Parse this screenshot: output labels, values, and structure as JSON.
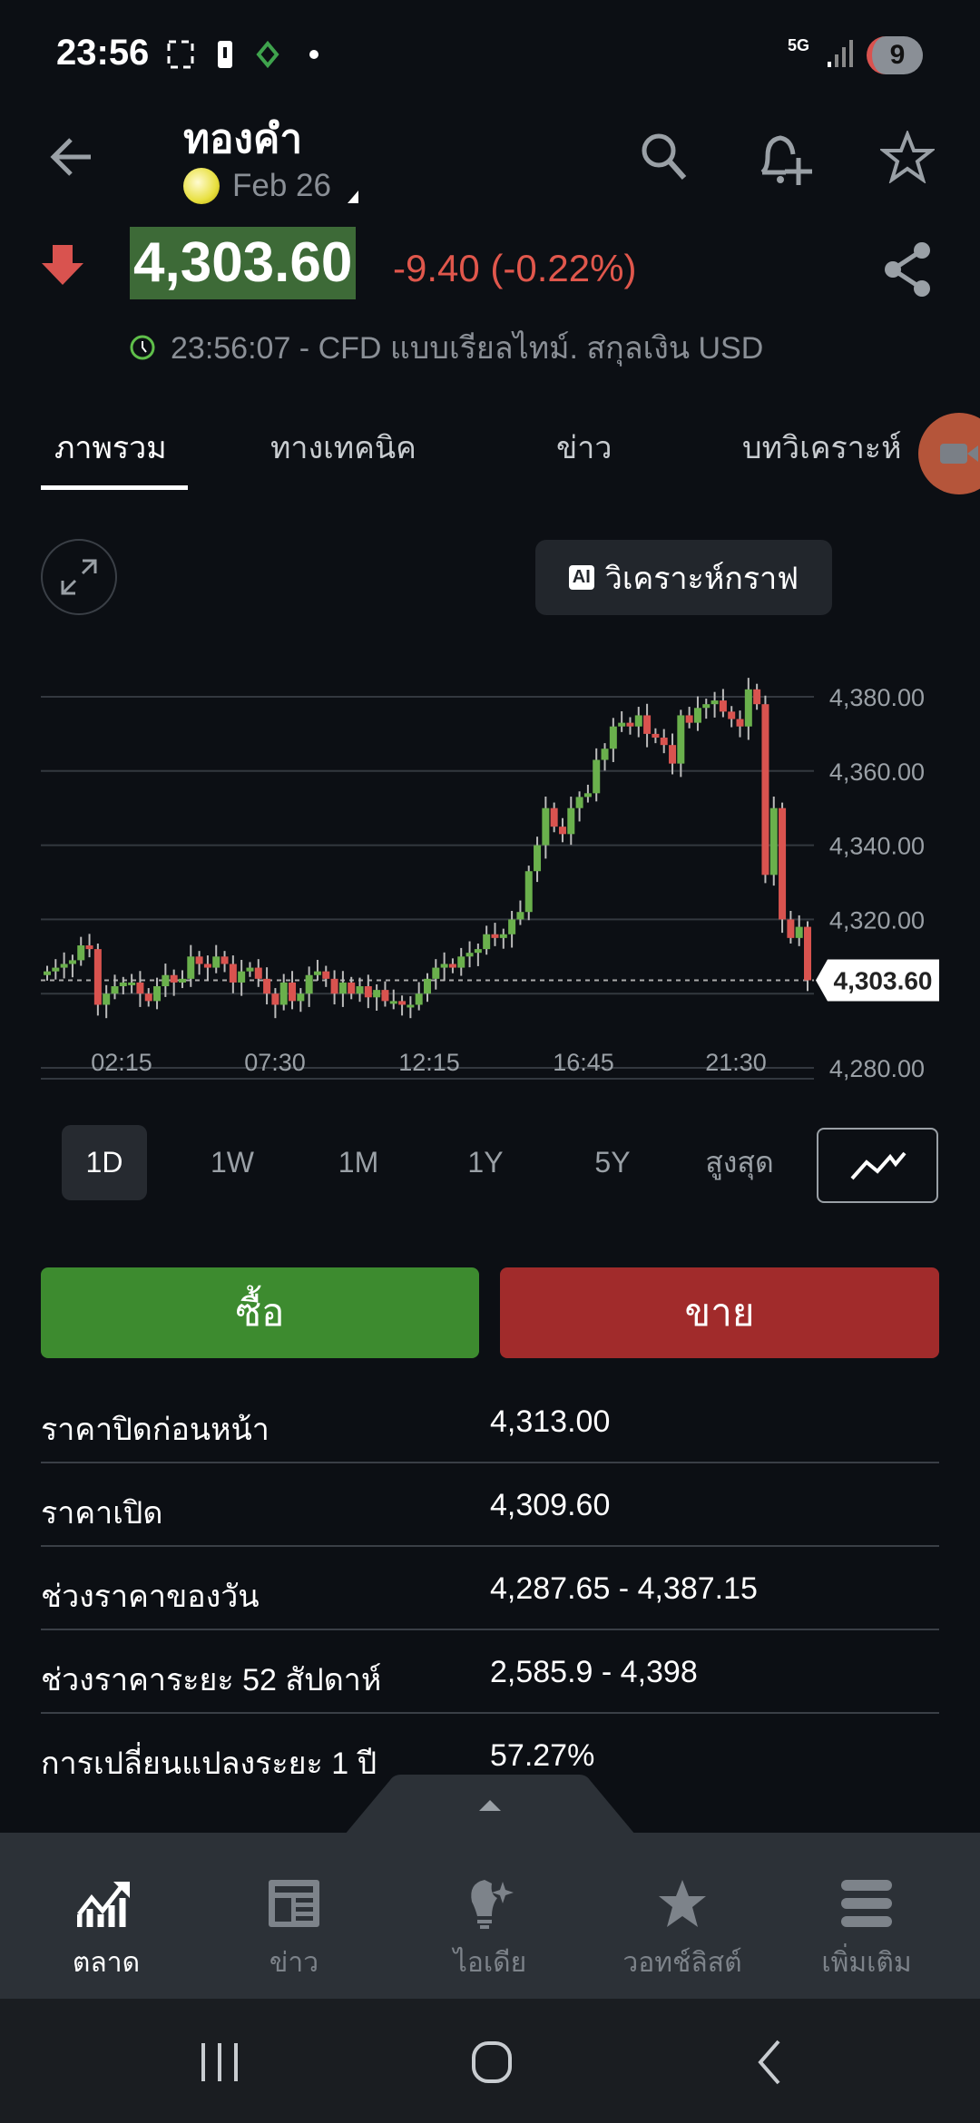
{
  "status": {
    "time": "23:56",
    "network": "5G",
    "notification_count": "9"
  },
  "header": {
    "title": "ทองคำ",
    "contract": "Feb 26",
    "icons": [
      "back-arrow-icon",
      "search-icon",
      "add-alert-icon",
      "star-icon",
      "share-icon"
    ]
  },
  "quote": {
    "price": "4,303.60",
    "change": "-9.40 (-0.22%)",
    "direction": "down",
    "timestamp_line": "23:56:07 - CFD แบบเรียลไทม์. สกุลเงิน USD"
  },
  "tabs": [
    {
      "label": "ภาพรวม",
      "active": true
    },
    {
      "label": "ทางเทคนิค"
    },
    {
      "label": "ข่าว"
    },
    {
      "label": "บทวิเคราะห์"
    }
  ],
  "chart_tools": {
    "ai_badge": "AI",
    "ai_label": "วิเคราะห์กราฟ"
  },
  "chart_data": {
    "type": "candlestick",
    "interval": "15 min",
    "y_ticks": [
      "4,380.00",
      "4,360.00",
      "4,340.00",
      "4,320.00",
      "4,280.00"
    ],
    "y_tick_values": [
      4380,
      4360,
      4340,
      4320,
      4280
    ],
    "ylim": [
      4280,
      4390
    ],
    "x_ticks": [
      "02:15",
      "07:30",
      "12:15",
      "16:45",
      "21:30"
    ],
    "last_price_label": "4,303.60",
    "last_price": 4303.6,
    "grid": true,
    "colors": {
      "up": "#6ab04c",
      "down": "#d9534f"
    },
    "closes": [
      4306,
      4307,
      4308,
      4309,
      4313,
      4312,
      4297,
      4300,
      4302,
      4303,
      4303,
      4300,
      4298,
      4302,
      4305,
      4303,
      4304,
      4310,
      4308,
      4307,
      4310,
      4308,
      4303,
      4306,
      4307,
      4304,
      4300,
      4297,
      4303,
      4298,
      4300,
      4305,
      4306,
      4304,
      4300,
      4303,
      4300,
      4302,
      4299,
      4301,
      4298,
      4298,
      4297,
      4297,
      4300,
      4304,
      4307,
      4308,
      4307,
      4310,
      4311,
      4312,
      4316,
      4315,
      4316,
      4320,
      4322,
      4333,
      4340,
      4350,
      4345,
      4343,
      4350,
      4353,
      4354,
      4363,
      4366,
      4372,
      4373,
      4372,
      4375,
      4370,
      4369,
      4367,
      4362,
      4375,
      4373,
      4377,
      4378,
      4379,
      4376,
      4374,
      4372,
      4382,
      4378,
      4332,
      4350,
      4320,
      4315,
      4318,
      4303.6
    ]
  },
  "periods": [
    {
      "label": "1D",
      "active": true
    },
    {
      "label": "1W"
    },
    {
      "label": "1M"
    },
    {
      "label": "1Y"
    },
    {
      "label": "5Y"
    },
    {
      "label": "สูงสุด"
    }
  ],
  "trade": {
    "buy": "ซื้อ",
    "sell": "ขาย",
    "buy_color": "#3d8b2f",
    "sell_color": "#a12b2b"
  },
  "stats": [
    {
      "label": "ราคาปิดก่อนหน้า",
      "value": "4,313.00"
    },
    {
      "label": "ราคาเปิด",
      "value": "4,309.60"
    },
    {
      "label": "ช่วงราคาของวัน",
      "value": "4,287.65 - 4,387.15"
    },
    {
      "label": "ช่วงราคาระยะ 52 สัปดาห์",
      "value": "2,585.9 - 4,398"
    },
    {
      "label": "การเปลี่ยนแปลงระยะ 1 ปี",
      "value": "57.27%"
    }
  ],
  "bottom_nav": [
    {
      "label": "ตลาด",
      "icon": "chart-up-icon",
      "active": true
    },
    {
      "label": "ข่าว",
      "icon": "news-icon"
    },
    {
      "label": "ไอเดีย",
      "icon": "idea-bulb-icon"
    },
    {
      "label": "วอทช์ลิสต์",
      "icon": "star-icon"
    },
    {
      "label": "เพิ่มเติม",
      "icon": "menu-icon"
    }
  ]
}
